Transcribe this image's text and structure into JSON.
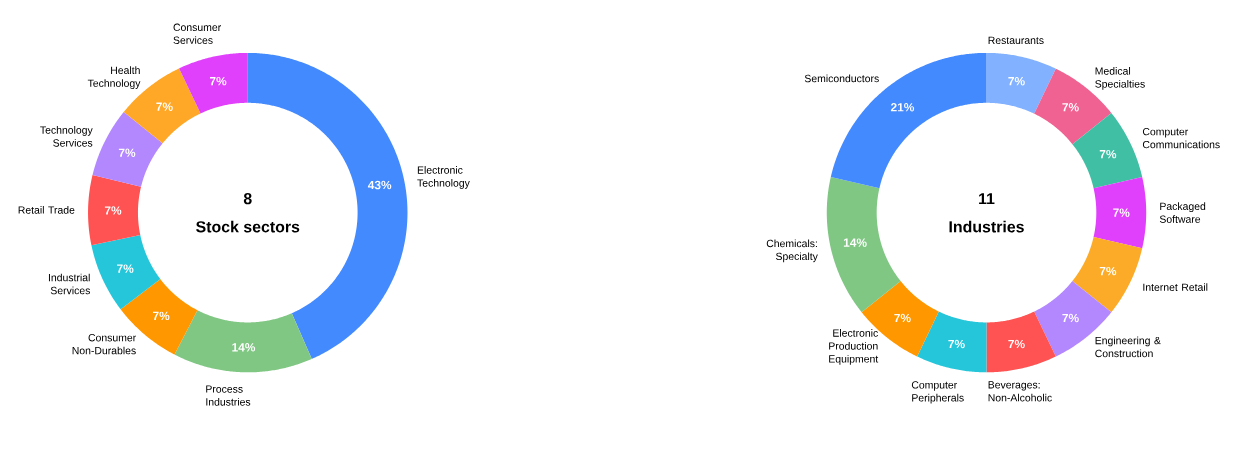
{
  "chart_data": [
    {
      "type": "donut",
      "title": "8",
      "subtitle": "Stock sectors",
      "categories": [
        "Electronic Technology",
        "Process Industries",
        "Consumer Non-Durables",
        "Industrial Services",
        "Retail Trade",
        "Technology Services",
        "Health Technology",
        "Consumer Services"
      ],
      "values": [
        43,
        14,
        7,
        7,
        7,
        7,
        7,
        7
      ],
      "value_labels": [
        "43%",
        "14%",
        "7%",
        "7%",
        "7%",
        "7%",
        "7%",
        "7%"
      ],
      "colors": [
        "#448aff",
        "#81c784",
        "#ff9800",
        "#26c6da",
        "#ff5252",
        "#b388ff",
        "#ffa726",
        "#e040fb"
      ]
    },
    {
      "type": "donut",
      "title": "11",
      "subtitle": "Industries",
      "categories": [
        "Restaurants",
        "Medical Specialties",
        "Computer Communications",
        "Packaged Software",
        "Internet Retail",
        "Engineering & Construction",
        "Beverages: Non-Alcoholic",
        "Computer Peripherals",
        "Electronic Production Equipment",
        "Chemicals: Specialty",
        "Semiconductors"
      ],
      "values": [
        7,
        7,
        7,
        7,
        7,
        7,
        7,
        7,
        7,
        14,
        21
      ],
      "value_labels": [
        "7%",
        "7%",
        "7%",
        "7%",
        "7%",
        "7%",
        "7%",
        "7%",
        "7%",
        "14%",
        "21%"
      ],
      "colors": [
        "#82b1ff",
        "#f06292",
        "#40bfa5",
        "#e040fb",
        "#fbab28",
        "#b388ff",
        "#ff5252",
        "#26c6da",
        "#ff9800",
        "#81c784",
        "#448aff"
      ]
    }
  ]
}
